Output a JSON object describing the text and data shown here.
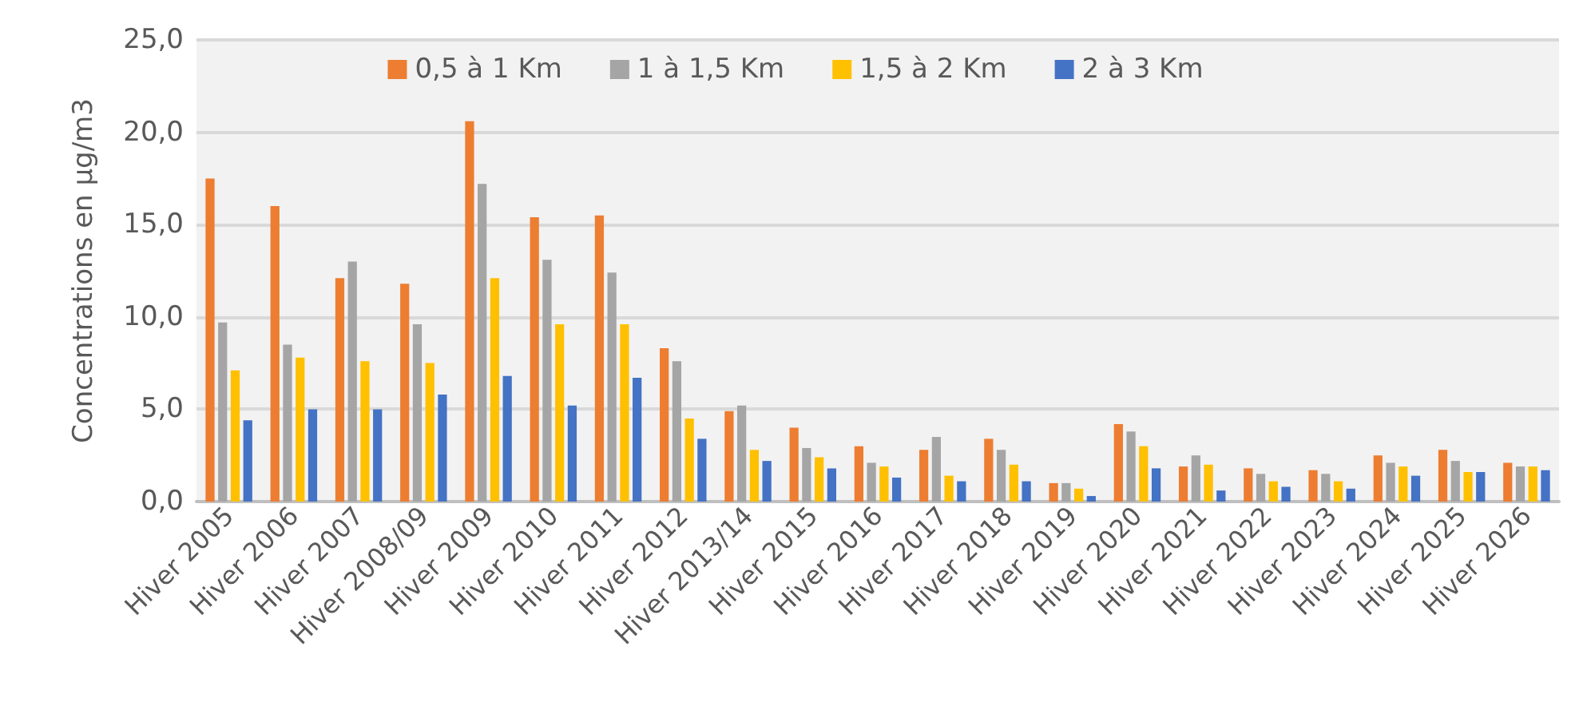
{
  "chart_data": {
    "type": "bar",
    "ylabel": "Concentrations en µg/m3",
    "categories": [
      "Hiver 2005",
      "Hiver 2006",
      "Hiver 2007",
      "Hiver 2008/09",
      "Hiver 2009",
      "Hiver 2010",
      "Hiver 2011",
      "Hiver 2012",
      "Hiver 2013/14",
      "Hiver 2015",
      "Hiver 2016",
      "Hiver 2017",
      "Hiver 2018",
      "Hiver 2019",
      "Hiver 2020",
      "Hiver 2021",
      "Hiver 2022",
      "Hiver 2023",
      "Hiver 2024",
      "Hiver 2025",
      "Hiver 2026"
    ],
    "series": [
      {
        "name": "0,5 à 1 Km",
        "color": "#ed7d31",
        "values": [
          17.5,
          16.0,
          12.1,
          11.8,
          20.6,
          15.4,
          15.5,
          8.3,
          4.9,
          4.0,
          3.0,
          2.8,
          3.4,
          1.0,
          4.2,
          1.9,
          1.8,
          1.7,
          2.5,
          2.8,
          2.1
        ]
      },
      {
        "name": "1 à 1,5 Km",
        "color": "#a5a5a5",
        "values": [
          9.7,
          8.5,
          13.0,
          9.6,
          17.2,
          13.1,
          12.4,
          7.6,
          5.2,
          2.9,
          2.1,
          3.5,
          2.8,
          1.0,
          3.8,
          2.5,
          1.5,
          1.5,
          2.1,
          2.2,
          1.9
        ]
      },
      {
        "name": "1,5 à 2 Km",
        "color": "#ffc000",
        "values": [
          7.1,
          7.8,
          7.6,
          7.5,
          12.1,
          9.6,
          9.6,
          4.5,
          2.8,
          2.4,
          1.9,
          1.4,
          2.0,
          0.7,
          3.0,
          2.0,
          1.1,
          1.1,
          1.9,
          1.6,
          1.9
        ]
      },
      {
        "name": "2 à 3 Km",
        "color": "#4472c4",
        "values": [
          4.4,
          5.0,
          5.0,
          5.8,
          6.8,
          5.2,
          6.7,
          3.4,
          2.2,
          1.8,
          1.3,
          1.1,
          1.1,
          0.3,
          1.8,
          0.6,
          0.8,
          0.7,
          1.4,
          1.6,
          1.7
        ]
      }
    ],
    "ylim": [
      0,
      25
    ],
    "yticks": [
      {
        "value": 0,
        "label": "0,0"
      },
      {
        "value": 5,
        "label": "5,0"
      },
      {
        "value": 10,
        "label": "10,0"
      },
      {
        "value": 15,
        "label": "15,0"
      },
      {
        "value": 20,
        "label": "20,0"
      },
      {
        "value": 25,
        "label": "25,0"
      }
    ],
    "grid": "y",
    "legend": "top"
  }
}
